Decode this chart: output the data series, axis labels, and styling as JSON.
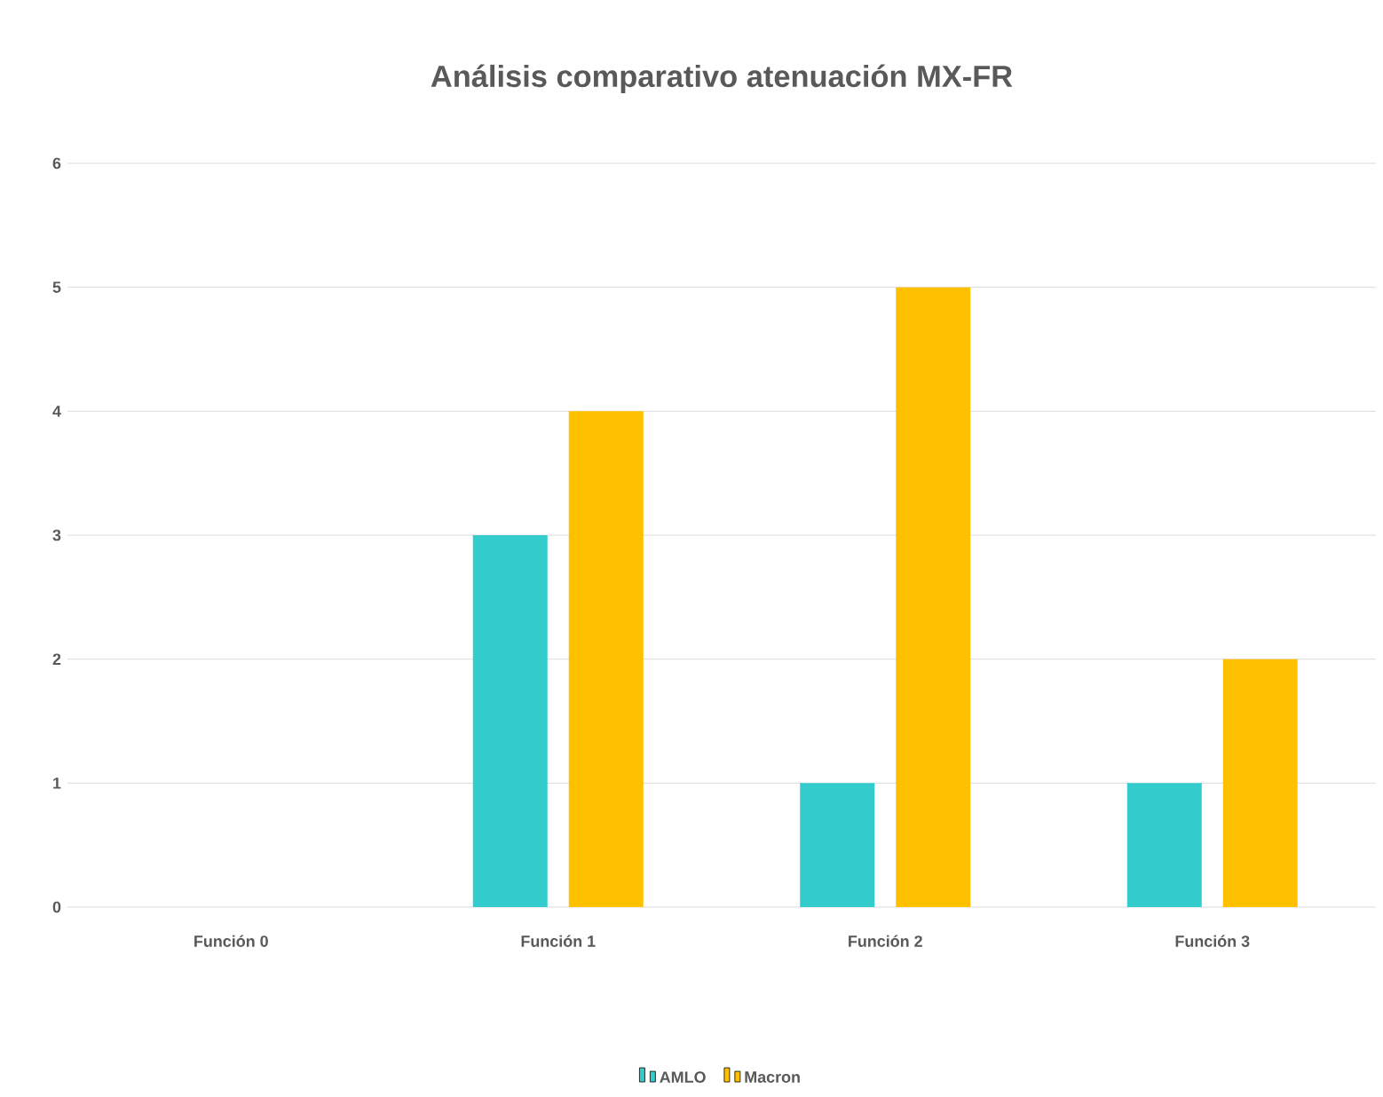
{
  "chart_data": {
    "type": "bar",
    "title": "Análisis comparativo atenuación  MX-FR",
    "categories": [
      "Función 0",
      "Función 1",
      "Función 2",
      "Función 3"
    ],
    "series": [
      {
        "name": "AMLO",
        "color": "#33cccc",
        "values": [
          0,
          3,
          1,
          1
        ]
      },
      {
        "name": "Macron",
        "color": "#ffc000",
        "values": [
          0,
          4,
          5,
          2
        ]
      }
    ],
    "ylim": [
      0,
      6
    ],
    "yticks": [
      0,
      1,
      2,
      3,
      4,
      5,
      6
    ],
    "grid": "y",
    "legend": "bottom"
  }
}
